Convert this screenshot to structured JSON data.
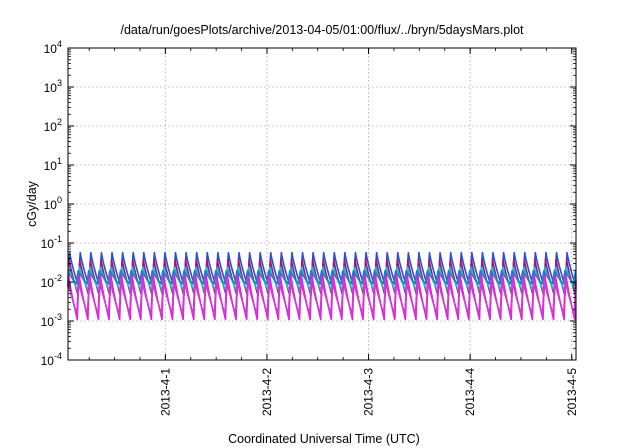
{
  "chart_data": {
    "type": "line",
    "title": "/data/run/goesPlots/archive/2013-04-05/01:00/flux/../bryn/5daysMars.plot",
    "xlabel": "Coordinated Universal Time (UTC)",
    "ylabel": "cGy/day",
    "yscale": "log",
    "ylim": [
      0.0001,
      10000
    ],
    "y_ticks": [
      {
        "base": "10",
        "exp": "-4",
        "value": 0.0001
      },
      {
        "base": "10",
        "exp": "-3",
        "value": 0.001
      },
      {
        "base": "10",
        "exp": "-2",
        "value": 0.01
      },
      {
        "base": "10",
        "exp": "-1",
        "value": 0.1
      },
      {
        "base": "10",
        "exp": "0",
        "value": 1
      },
      {
        "base": "10",
        "exp": "1",
        "value": 10
      },
      {
        "base": "10",
        "exp": "2",
        "value": 100
      },
      {
        "base": "10",
        "exp": "3",
        "value": 1000
      },
      {
        "base": "10",
        "exp": "4",
        "value": 10000
      }
    ],
    "xlim": [
      "2013-03-31 01:00",
      "2013-04-05 01:00"
    ],
    "x_ticks": [
      {
        "label": "2013-4-1",
        "value": "2013-04-01 00:00"
      },
      {
        "label": "2013-4-2",
        "value": "2013-04-02 00:00"
      },
      {
        "label": "2013-4-3",
        "value": "2013-04-03 00:00"
      },
      {
        "label": "2013-4-4",
        "value": "2013-04-04 00:00"
      },
      {
        "label": "2013-4-5",
        "value": "2013-04-05 00:00"
      }
    ],
    "grid": true,
    "legend": "none",
    "cycle_period_hours": 2.5,
    "series": [
      {
        "color": "#2a4dd6",
        "peak": 0.06,
        "trough": 0.0075
      },
      {
        "color": "#a0177a",
        "peak": 0.04,
        "trough": 0.0045
      },
      {
        "color": "#22b8c8",
        "peak": 0.025,
        "trough": 0.006
      },
      {
        "color": "#e01fe0",
        "peak": 0.018,
        "trough": 0.0011
      },
      {
        "color": "#d03ad0",
        "peak": 0.012,
        "trough": 0.0015
      },
      {
        "color": "#1f7fc0",
        "peak": 0.02,
        "trough": 0.009
      }
    ]
  }
}
